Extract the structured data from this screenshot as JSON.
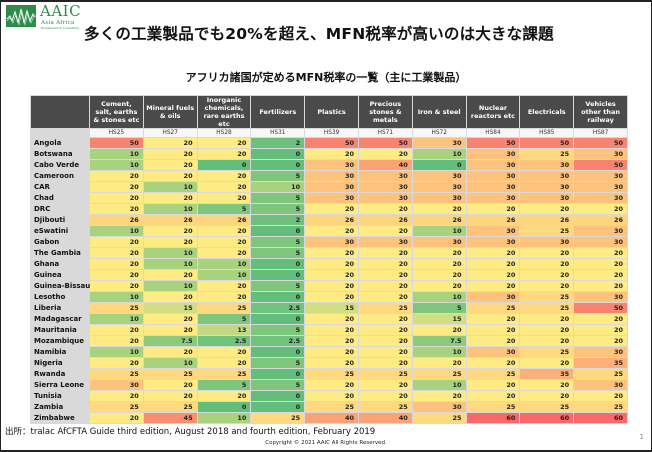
{
  "logo": {
    "brand": "AAIC",
    "tagline": "Asia Africa",
    "tagline_small": "Investment & Consulting",
    "color": "#2e8b4a"
  },
  "header": {
    "title": "多くの工業製品でも20%を超え、MFN税率が高いのは大きな課題",
    "subtitle": "アフリカ諸国が定めるMFN税率の一覧（主に工業製品）"
  },
  "table": {
    "columns": [
      {
        "label": "Cement, salt, earths & stones etc",
        "code": "HS25"
      },
      {
        "label": "Mineral fuels & oils",
        "code": "HS27"
      },
      {
        "label": "Inorganic chemicals, rare earths etc",
        "code": "HS28"
      },
      {
        "label": "Fertilizers",
        "code": "HS31"
      },
      {
        "label": "Plastics",
        "code": "HS39"
      },
      {
        "label": "Precious stones & metals",
        "code": "HS71"
      },
      {
        "label": "Iron & steel",
        "code": "HS72"
      },
      {
        "label": "Nuclear reactors etc",
        "code": "HS84"
      },
      {
        "label": "Electricals",
        "code": "HS85"
      },
      {
        "label": "Vehicles other than railway",
        "code": "HS87"
      }
    ],
    "rows": [
      {
        "country": "Angola",
        "values": [
          "50",
          "20",
          "20",
          "2",
          "50",
          "50",
          "30",
          "50",
          "50",
          "50"
        ]
      },
      {
        "country": "Botswana",
        "values": [
          "10",
          "20",
          "20",
          "0",
          "20",
          "20",
          "10",
          "30",
          "25",
          "30"
        ]
      },
      {
        "country": "Cabo Verde",
        "values": [
          "10",
          "20",
          "0",
          "0",
          "30",
          "40",
          "0",
          "30",
          "30",
          "50"
        ]
      },
      {
        "country": "Cameroon",
        "values": [
          "20",
          "20",
          "20",
          "5",
          "30",
          "30",
          "30",
          "30",
          "30",
          "30"
        ]
      },
      {
        "country": "CAR",
        "values": [
          "20",
          "10",
          "20",
          "10",
          "30",
          "30",
          "30",
          "30",
          "30",
          "30"
        ]
      },
      {
        "country": "Chad",
        "values": [
          "20",
          "20",
          "20",
          "5",
          "30",
          "30",
          "30",
          "30",
          "30",
          "30"
        ]
      },
      {
        "country": "DRC",
        "values": [
          "20",
          "10",
          "5",
          "5",
          "20",
          "20",
          "20",
          "20",
          "20",
          "20"
        ]
      },
      {
        "country": "Djibouti",
        "values": [
          "26",
          "26",
          "26",
          "2",
          "26",
          "26",
          "26",
          "26",
          "26",
          "26"
        ]
      },
      {
        "country": "eSwatini",
        "values": [
          "10",
          "20",
          "20",
          "0",
          "20",
          "20",
          "10",
          "30",
          "25",
          "30"
        ]
      },
      {
        "country": "Gabon",
        "values": [
          "20",
          "20",
          "20",
          "5",
          "30",
          "30",
          "30",
          "30",
          "30",
          "30"
        ]
      },
      {
        "country": "The Gambia",
        "values": [
          "20",
          "10",
          "20",
          "5",
          "20",
          "20",
          "20",
          "20",
          "20",
          "20"
        ]
      },
      {
        "country": "Ghana",
        "values": [
          "20",
          "10",
          "10",
          "0",
          "20",
          "20",
          "20",
          "20",
          "20",
          "20"
        ]
      },
      {
        "country": "Guinea",
        "values": [
          "20",
          "20",
          "10",
          "0",
          "20",
          "20",
          "20",
          "20",
          "20",
          "20"
        ]
      },
      {
        "country": "Guinea-Bissau",
        "values": [
          "20",
          "10",
          "20",
          "5",
          "20",
          "20",
          "20",
          "20",
          "20",
          "20"
        ]
      },
      {
        "country": "Lesotho",
        "values": [
          "10",
          "20",
          "20",
          "0",
          "20",
          "20",
          "10",
          "30",
          "25",
          "30"
        ]
      },
      {
        "country": "Liberia",
        "values": [
          "25",
          "15",
          "25",
          "2.5",
          "15",
          "25",
          "5",
          "25",
          "25",
          "50"
        ]
      },
      {
        "country": "Madagascar",
        "values": [
          "10",
          "20",
          "5",
          "0",
          "20",
          "20",
          "15",
          "20",
          "20",
          "20"
        ]
      },
      {
        "country": "Mauritania",
        "values": [
          "20",
          "20",
          "13",
          "5",
          "20",
          "20",
          "20",
          "20",
          "20",
          "20"
        ]
      },
      {
        "country": "Mozambique",
        "values": [
          "20",
          "7.5",
          "2.5",
          "2.5",
          "20",
          "20",
          "7.5",
          "20",
          "20",
          "20"
        ]
      },
      {
        "country": "Namibia",
        "values": [
          "10",
          "20",
          "20",
          "0",
          "20",
          "20",
          "10",
          "30",
          "25",
          "30"
        ]
      },
      {
        "country": "Nigeria",
        "values": [
          "20",
          "10",
          "20",
          "5",
          "20",
          "20",
          "20",
          "20",
          "20",
          "35"
        ]
      },
      {
        "country": "Rwanda",
        "values": [
          "25",
          "25",
          "25",
          "0",
          "25",
          "25",
          "25",
          "25",
          "35",
          "25"
        ]
      },
      {
        "country": "Sierra Leone",
        "values": [
          "30",
          "20",
          "5",
          "5",
          "20",
          "20",
          "10",
          "20",
          "20",
          "30"
        ]
      },
      {
        "country": "Tunisia",
        "values": [
          "20",
          "20",
          "20",
          "0",
          "20",
          "20",
          "20",
          "20",
          "20",
          "20"
        ]
      },
      {
        "country": "Zambia",
        "values": [
          "25",
          "25",
          "0",
          "0",
          "25",
          "25",
          "30",
          "25",
          "25",
          "25"
        ]
      },
      {
        "country": "Zimbabwe",
        "values": [
          "20",
          "45",
          "10",
          "25",
          "40",
          "40",
          "25",
          "60",
          "60",
          "60"
        ]
      }
    ],
    "color_scale": {
      "0": "#63be7b",
      "2": "#6ec17c",
      "2.5": "#70c27c",
      "5": "#7fc67d",
      "7.5": "#8dca7e",
      "10": "#a9d27f",
      "13": "#c2d980",
      "15": "#d1de81",
      "20": "#ffeb84",
      "25": "#fed980",
      "26": "#fed57f",
      "30": "#fdc27c",
      "35": "#fcaf79",
      "40": "#fba276",
      "45": "#f98f72",
      "50": "#f88370",
      "60": "#f8696b"
    }
  },
  "footer": {
    "source": "出所：tralac AfCFTA Guide third edition, August 2018 and fourth edition, February 2019",
    "copyright": "Copyright © 2021 AAIC All Rights Reserved.",
    "page_number": "1"
  }
}
